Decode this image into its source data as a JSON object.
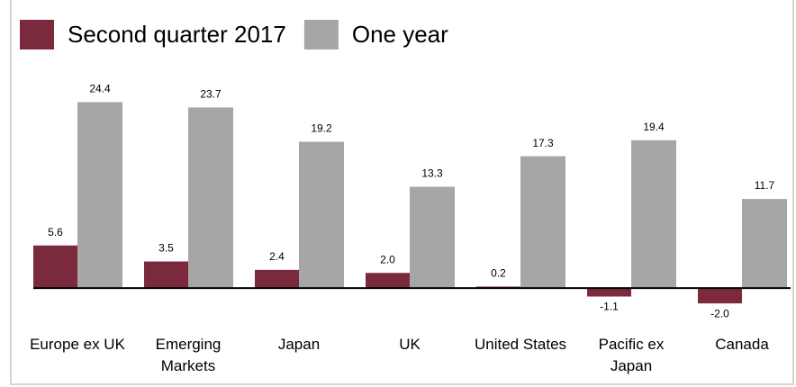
{
  "chart_data": {
    "type": "bar",
    "categories": [
      "Europe ex UK",
      "Emerging Markets",
      "Japan",
      "UK",
      "United States",
      "Pacific ex Japan",
      "Canada"
    ],
    "series": [
      {
        "name": "Second quarter 2017",
        "color": "#7b2a3e",
        "values": [
          5.6,
          3.5,
          2.4,
          2.0,
          0.2,
          -1.1,
          -2.0
        ],
        "value_labels": [
          "5.6",
          "3.5",
          "2.4",
          "2.0",
          "0.2",
          "-1.1",
          "-2.0"
        ]
      },
      {
        "name": "One year",
        "color": "#a6a6a6",
        "values": [
          24.4,
          23.7,
          19.2,
          13.3,
          17.3,
          19.4,
          11.7
        ],
        "value_labels": [
          "24.4",
          "23.7",
          "19.2",
          "13.3",
          "17.3",
          "19.4",
          "11.7"
        ]
      }
    ],
    "ylim": [
      -6,
      28
    ],
    "grid": false
  }
}
